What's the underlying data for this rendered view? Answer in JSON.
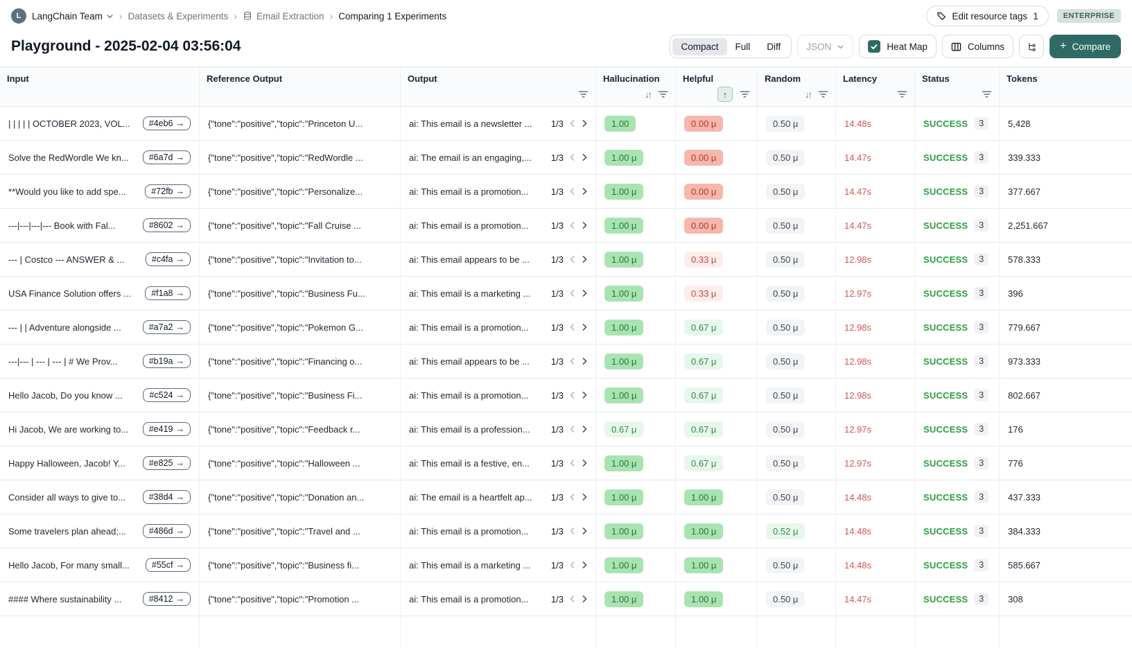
{
  "breadcrumb": {
    "avatar_letter": "L",
    "team": "LangChain Team",
    "items": [
      "Datasets & Experiments",
      "Email Extraction",
      "Comparing 1 Experiments"
    ]
  },
  "header_actions": {
    "edit_tags_label": "Edit resource tags",
    "edit_tags_count": "1",
    "plan_badge": "ENTERPRISE"
  },
  "page": {
    "title": "Playground - 2025-02-04 03:56:04"
  },
  "toolbar": {
    "view_modes": [
      "Compact",
      "Full",
      "Diff"
    ],
    "active_view": "Compact",
    "format_select": "JSON",
    "heatmap_label": "Heat Map",
    "heatmap_checked": true,
    "columns_label": "Columns",
    "compare_plus": "+",
    "compare_label": "Compare"
  },
  "colors": {
    "accent": "#2f6a64",
    "success": "#2b9e3f",
    "latency_red": "#d25555",
    "heat_green": "#a9e3b1",
    "heat_red": "#f5b7ae"
  },
  "table": {
    "columns": [
      {
        "label": "Input"
      },
      {
        "label": "Reference Output"
      },
      {
        "label": "Output"
      },
      {
        "label": "Hallucination"
      },
      {
        "label": "Helpful"
      },
      {
        "label": "Random"
      },
      {
        "label": "Latency"
      },
      {
        "label": "Status"
      },
      {
        "label": "Tokens"
      }
    ],
    "rows": [
      {
        "input": "| | | | | OCTOBER 2023, VOL...",
        "id": "#4eb6",
        "id_arrow": "→",
        "ref": "{\"tone\":\"positive\",\"topic\":\"Princeton U...",
        "output": "ai: This email is a newsletter ...",
        "pager": "1/3",
        "hallucination": {
          "text": "1.00",
          "level": "green"
        },
        "helpful": {
          "text": "0.00 μ",
          "level": "red"
        },
        "random": {
          "text": "0.50 μ",
          "level": "gray"
        },
        "latency": "14.48s",
        "status": "SUCCESS",
        "runs": "3",
        "tokens": "5,428"
      },
      {
        "input": "Solve the RedWordle We kn...",
        "id": "#6a7d",
        "id_arrow": "→",
        "ref": "{\"tone\":\"positive\",\"topic\":\"RedWordle ...",
        "output": "ai: The email is an engaging,...",
        "pager": "1/3",
        "hallucination": {
          "text": "1.00 μ",
          "level": "green"
        },
        "helpful": {
          "text": "0.00 μ",
          "level": "red"
        },
        "random": {
          "text": "0.50 μ",
          "level": "gray"
        },
        "latency": "14.47s",
        "status": "SUCCESS",
        "runs": "3",
        "tokens": "339.333"
      },
      {
        "input": "**Would you like to add spe...",
        "id": "#72fb",
        "id_arrow": "→",
        "ref": "{\"tone\":\"positive\",\"topic\":\"Personalize...",
        "output": "ai: This email is a promotion...",
        "pager": "1/3",
        "hallucination": {
          "text": "1.00 μ",
          "level": "green"
        },
        "helpful": {
          "text": "0.00 μ",
          "level": "red"
        },
        "random": {
          "text": "0.50 μ",
          "level": "gray"
        },
        "latency": "14.47s",
        "status": "SUCCESS",
        "runs": "3",
        "tokens": "377.667"
      },
      {
        "input": "---|---|---|--- Book with Fal...",
        "id": "#8602",
        "id_arrow": "→",
        "ref": "{\"tone\":\"positive\",\"topic\":\"Fall Cruise ...",
        "output": "ai: This email is a promotion...",
        "pager": "1/3",
        "hallucination": {
          "text": "1.00 μ",
          "level": "green"
        },
        "helpful": {
          "text": "0.00 μ",
          "level": "red"
        },
        "random": {
          "text": "0.50 μ",
          "level": "gray"
        },
        "latency": "14.47s",
        "status": "SUCCESS",
        "runs": "3",
        "tokens": "2,251.667"
      },
      {
        "input": "--- | Costco --- ANSWER & ...",
        "id": "#c4fa",
        "id_arrow": "→",
        "ref": "{\"tone\":\"positive\",\"topic\":\"Invitation to...",
        "output": "ai: This email appears to be ...",
        "pager": "1/3",
        "hallucination": {
          "text": "1.00 μ",
          "level": "green"
        },
        "helpful": {
          "text": "0.33 μ",
          "level": "red-light"
        },
        "random": {
          "text": "0.50 μ",
          "level": "gray"
        },
        "latency": "12.98s",
        "status": "SUCCESS",
        "runs": "3",
        "tokens": "578.333"
      },
      {
        "input": "USA Finance Solution offers ...",
        "id": "#f1a8",
        "id_arrow": "→",
        "ref": "{\"tone\":\"positive\",\"topic\":\"Business Fu...",
        "output": "ai: This email is a marketing ...",
        "pager": "1/3",
        "hallucination": {
          "text": "1.00 μ",
          "level": "green"
        },
        "helpful": {
          "text": "0.33 μ",
          "level": "red-light"
        },
        "random": {
          "text": "0.50 μ",
          "level": "gray"
        },
        "latency": "12.97s",
        "status": "SUCCESS",
        "runs": "3",
        "tokens": "396"
      },
      {
        "input": "--- | | Adventure alongside ...",
        "id": "#a7a2",
        "id_arrow": "→",
        "ref": "{\"tone\":\"positive\",\"topic\":\"Pokemon G...",
        "output": "ai: This email is a promotion...",
        "pager": "1/3",
        "hallucination": {
          "text": "1.00 μ",
          "level": "green"
        },
        "helpful": {
          "text": "0.67 μ",
          "level": "green-light"
        },
        "random": {
          "text": "0.50 μ",
          "level": "gray"
        },
        "latency": "12.98s",
        "status": "SUCCESS",
        "runs": "3",
        "tokens": "779.667"
      },
      {
        "input": "---|--- | --- | --- | # We Prov...",
        "id": "#b19a",
        "id_arrow": "→",
        "ref": "{\"tone\":\"positive\",\"topic\":\"Financing o...",
        "output": "ai: This email appears to be ...",
        "pager": "1/3",
        "hallucination": {
          "text": "1.00 μ",
          "level": "green"
        },
        "helpful": {
          "text": "0.67 μ",
          "level": "green-light"
        },
        "random": {
          "text": "0.50 μ",
          "level": "gray"
        },
        "latency": "12.98s",
        "status": "SUCCESS",
        "runs": "3",
        "tokens": "973.333"
      },
      {
        "input": "Hello Jacob, Do you know ...",
        "id": "#c524",
        "id_arrow": "→",
        "ref": "{\"tone\":\"positive\",\"topic\":\"Business Fi...",
        "output": "ai: This email is a promotion...",
        "pager": "1/3",
        "hallucination": {
          "text": "1.00 μ",
          "level": "green"
        },
        "helpful": {
          "text": "0.67 μ",
          "level": "green-light"
        },
        "random": {
          "text": "0.50 μ",
          "level": "gray"
        },
        "latency": "12.98s",
        "status": "SUCCESS",
        "runs": "3",
        "tokens": "802.667"
      },
      {
        "input": "Hi Jacob, We are working to...",
        "id": "#e419",
        "id_arrow": "→",
        "ref": "{\"tone\":\"positive\",\"topic\":\"Feedback r...",
        "output": "ai: This email is a profession...",
        "pager": "1/3",
        "hallucination": {
          "text": "0.67 μ",
          "level": "green-light"
        },
        "helpful": {
          "text": "0.67 μ",
          "level": "green-light"
        },
        "random": {
          "text": "0.50 μ",
          "level": "gray"
        },
        "latency": "12.97s",
        "status": "SUCCESS",
        "runs": "3",
        "tokens": "176"
      },
      {
        "input": "Happy Halloween, Jacob! Y...",
        "id": "#e825",
        "id_arrow": "→",
        "ref": "{\"tone\":\"positive\",\"topic\":\"Halloween ...",
        "output": "ai: This email is a festive, en...",
        "pager": "1/3",
        "hallucination": {
          "text": "1.00 μ",
          "level": "green"
        },
        "helpful": {
          "text": "0.67 μ",
          "level": "green-light"
        },
        "random": {
          "text": "0.50 μ",
          "level": "gray"
        },
        "latency": "12.97s",
        "status": "SUCCESS",
        "runs": "3",
        "tokens": "776"
      },
      {
        "input": "Consider all ways to give to...",
        "id": "#38d4",
        "id_arrow": "→",
        "ref": "{\"tone\":\"positive\",\"topic\":\"Donation an...",
        "output": "ai: The email is a heartfelt ap...",
        "pager": "1/3",
        "hallucination": {
          "text": "1.00 μ",
          "level": "green"
        },
        "helpful": {
          "text": "1.00 μ",
          "level": "green"
        },
        "random": {
          "text": "0.50 μ",
          "level": "gray"
        },
        "latency": "14.48s",
        "status": "SUCCESS",
        "runs": "3",
        "tokens": "437.333"
      },
      {
        "input": "Some travelers plan ahead;...",
        "id": "#486d",
        "id_arrow": "→",
        "ref": "{\"tone\":\"positive\",\"topic\":\"Travel and ...",
        "output": "ai: This email is a promotion...",
        "pager": "1/3",
        "hallucination": {
          "text": "1.00 μ",
          "level": "green"
        },
        "helpful": {
          "text": "1.00 μ",
          "level": "green"
        },
        "random": {
          "text": "0.52 μ",
          "level": "green-light"
        },
        "latency": "14.48s",
        "status": "SUCCESS",
        "runs": "3",
        "tokens": "384.333"
      },
      {
        "input": "Hello Jacob, For many small...",
        "id": "#55cf",
        "id_arrow": "→",
        "ref": "{\"tone\":\"positive\",\"topic\":\"Business fi...",
        "output": "ai: This email is a marketing ...",
        "pager": "1/3",
        "hallucination": {
          "text": "1.00 μ",
          "level": "green"
        },
        "helpful": {
          "text": "1.00 μ",
          "level": "green"
        },
        "random": {
          "text": "0.50 μ",
          "level": "gray"
        },
        "latency": "14.48s",
        "status": "SUCCESS",
        "runs": "3",
        "tokens": "585.667"
      },
      {
        "input": "#### Where sustainability ...",
        "id": "#8412",
        "id_arrow": "→",
        "ref": "{\"tone\":\"positive\",\"topic\":\"Promotion ...",
        "output": "ai: This email is a promotion...",
        "pager": "1/3",
        "hallucination": {
          "text": "1.00 μ",
          "level": "green"
        },
        "helpful": {
          "text": "1.00 μ",
          "level": "green"
        },
        "random": {
          "text": "0.50 μ",
          "level": "gray"
        },
        "latency": "14.47s",
        "status": "SUCCESS",
        "runs": "3",
        "tokens": "308"
      }
    ]
  }
}
